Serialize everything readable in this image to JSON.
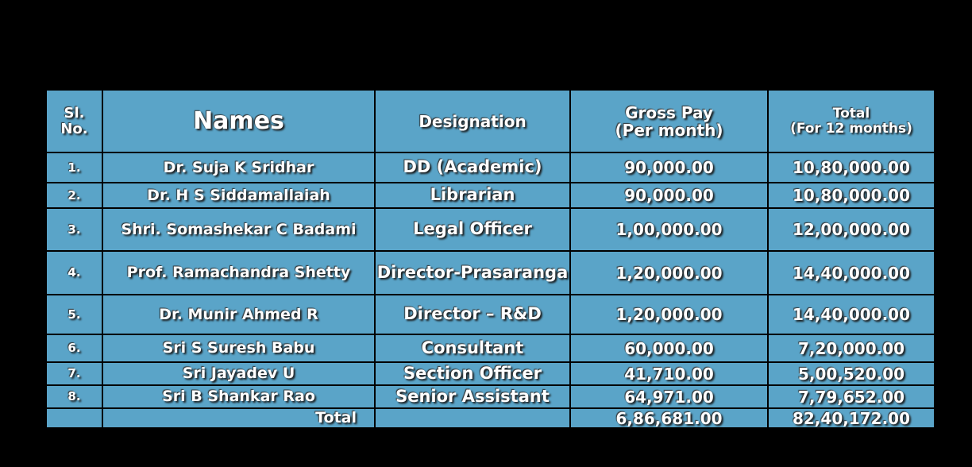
{
  "table": {
    "header": [
      "Sl.\nNo.",
      "Names",
      "Designation",
      "Gross Pay\n(Per month)",
      "Total\n(For 12 months)"
    ],
    "rows": [
      [
        "1.",
        "Dr. Suja K Sridhar",
        "DD (Academic)",
        "90,000.00",
        "10,80,000.00"
      ],
      [
        "2.",
        "Dr. H S Siddamallaiah",
        "Librarian",
        "90,000.00",
        "10,80,000.00"
      ],
      [
        "3.",
        "Shri. Somashekar C Badami",
        "Legal Officer",
        "1,00,000.00",
        "12,00,000.00"
      ],
      [
        "4.",
        "Prof. Ramachandra Shetty",
        "Director-Prasaranga",
        "1,20,000.00",
        "14,40,000.00"
      ],
      [
        "5.",
        "Dr. Munir Ahmed R",
        "Director – R&D",
        "1,20,000.00",
        "14,40,000.00"
      ],
      [
        "6.",
        "Sri S Suresh Babu",
        "Consultant",
        "60,000.00",
        "7,20,000.00"
      ],
      [
        "7.",
        "Sri Jayadev U",
        "Section Officer",
        "41,710.00",
        "5,00,520.00"
      ],
      [
        "8.",
        "Sri B Shankar Rao",
        "Senior Assistant",
        "64,971.00",
        "7,79,652.00"
      ]
    ],
    "total": {
      "label": "Total",
      "gross_pay": "6,86,681.00",
      "total": "82,40,172.00"
    }
  }
}
